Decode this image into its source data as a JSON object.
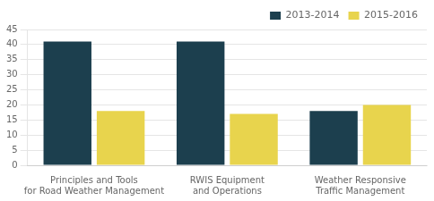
{
  "chart_data": {
    "type": "bar",
    "categories": [
      "Principles and Tools\nfor Road Weather Management",
      "RWIS Equipment\nand Operations",
      "Weather Responsive\nTraffic Management"
    ],
    "series": [
      {
        "name": "2013-2014",
        "color": "#1c3f4e",
        "values": [
          41,
          41,
          18
        ]
      },
      {
        "name": "2015-2016",
        "color": "#e8d44d",
        "values": [
          18,
          17,
          20
        ]
      }
    ],
    "ylim": [
      0,
      45
    ],
    "yticks": [
      0,
      5,
      10,
      15,
      20,
      25,
      30,
      35,
      40,
      45
    ],
    "grid": true,
    "legend": "upper right"
  }
}
